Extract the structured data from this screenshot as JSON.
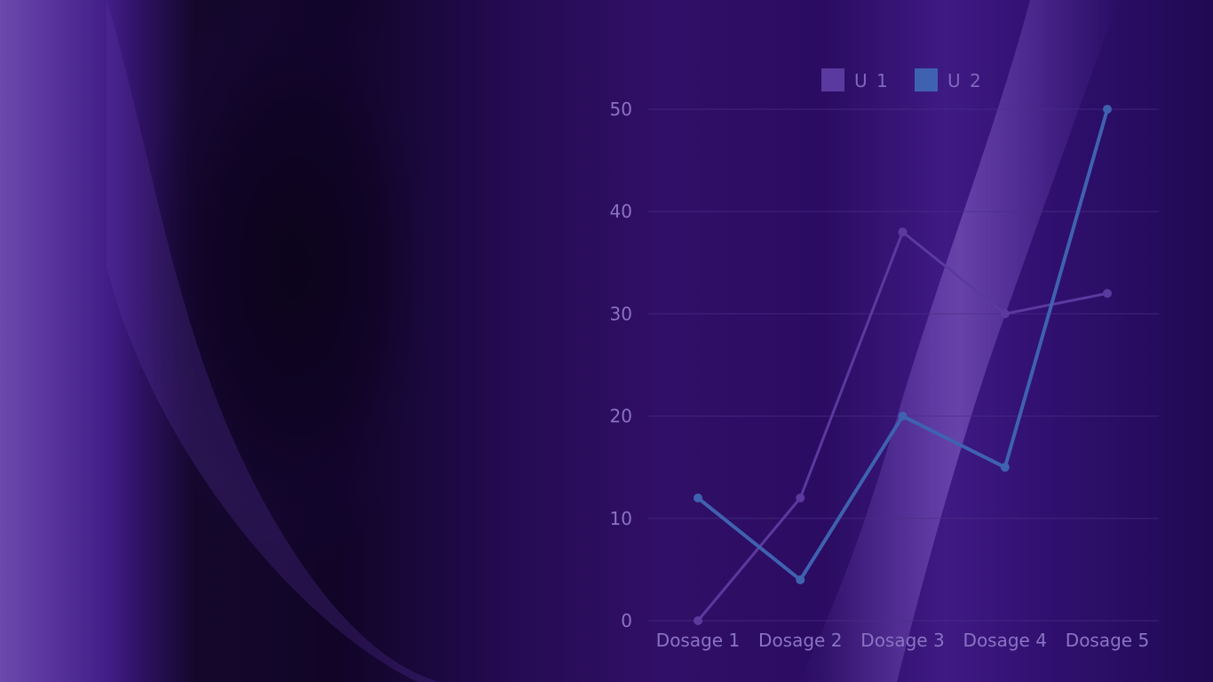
{
  "chart_data": {
    "type": "line",
    "categories": [
      "Dosage 1",
      "Dosage 2",
      "Dosage 3",
      "Dosage 4",
      "Dosage 5"
    ],
    "series": [
      {
        "name": "U 1",
        "values": [
          0,
          12,
          38,
          30,
          32
        ],
        "color": "#5a3a9e"
      },
      {
        "name": "U 2",
        "values": [
          12,
          4,
          20,
          15,
          50
        ],
        "color": "#3f62b0"
      }
    ],
    "yticks": [
      0,
      10,
      20,
      30,
      40,
      50
    ],
    "ylim": [
      0,
      50
    ],
    "grid": true,
    "legend_position": "top-center"
  },
  "colors": {
    "axis_text": "#8a73c2",
    "grid": "#4a2f86",
    "legend_text": "#7f68bd"
  }
}
